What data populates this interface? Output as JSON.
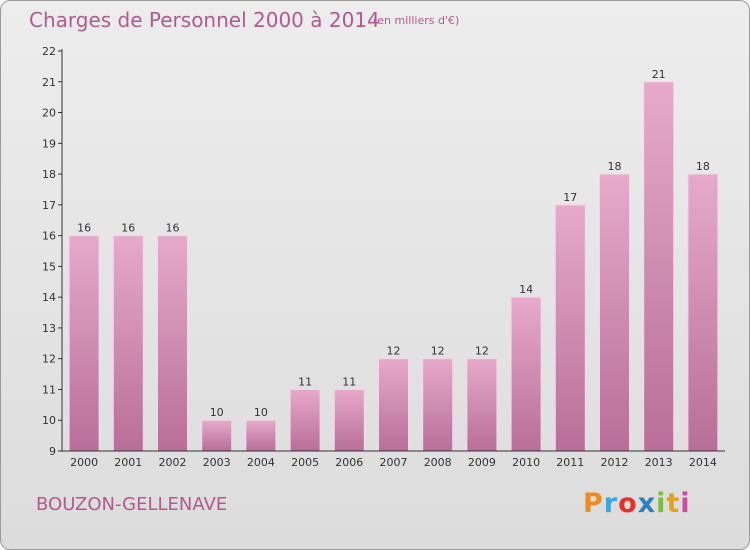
{
  "header": {
    "title": "Charges de Personnel 2000 à 2014",
    "subtitle": "(en milliers d'€)"
  },
  "footer": {
    "commune": "BOUZON-GELLENAVE",
    "logo_text": "Proxiti",
    "logo_colors": [
      "#f08a1e",
      "#3aa6dd",
      "#e4312b",
      "#2f7fc1",
      "#7cbf3a",
      "#e6a11f",
      "#d14aa0"
    ]
  },
  "colors": {
    "bar_light": "#e6aacb",
    "bar_dark": "#b86e98",
    "text_accent": "#b25a8f",
    "background": "#e5e5e5"
  },
  "chart_data": {
    "type": "bar",
    "title": "Charges de Personnel 2000 à 2014",
    "subtitle": "(en milliers d'€)",
    "xlabel": "",
    "ylabel": "",
    "categories": [
      "2000",
      "2001",
      "2002",
      "2003",
      "2004",
      "2005",
      "2006",
      "2007",
      "2008",
      "2009",
      "2010",
      "2011",
      "2012",
      "2013",
      "2014"
    ],
    "values": [
      16,
      16,
      16,
      10,
      10,
      11,
      11,
      12,
      12,
      12,
      14,
      17,
      18,
      21,
      18
    ],
    "ylim": [
      9,
      22
    ],
    "yticks": [
      9,
      10,
      11,
      12,
      13,
      14,
      15,
      16,
      17,
      18,
      19,
      20,
      21,
      22
    ],
    "grid": false,
    "data_labels": true
  }
}
